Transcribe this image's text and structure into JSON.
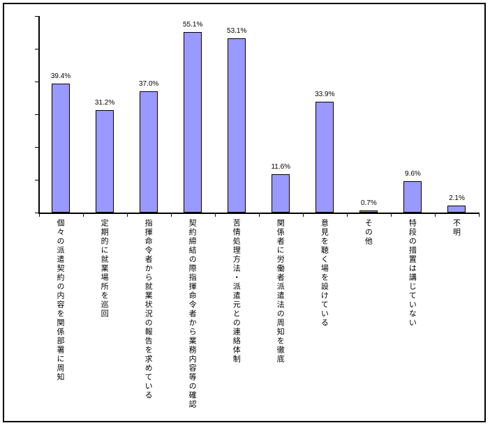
{
  "chart_data": {
    "type": "bar",
    "title": "",
    "xlabel": "",
    "ylabel": "",
    "categories": [
      "個々の派遣契約の内容を関係部署に周知",
      "定期的に就業場所を巡回",
      "指揮命令者から就業状況の報告を求めている",
      "契約締結の際指揮命令者から業務内容等の確認",
      "苦情処理方法・派遣元との連絡体制",
      "関係者に労働者派遣法の周知を徹底",
      "意見を聴く場を設けている",
      "その他",
      "特段の措置は講じていない",
      "不明"
    ],
    "values": [
      39.4,
      31.2,
      37.0,
      55.1,
      53.1,
      11.6,
      33.9,
      0.7,
      9.6,
      2.1
    ],
    "value_labels": [
      "39.4%",
      "31.2%",
      "37.0%",
      "55.1%",
      "53.1%",
      "11.6%",
      "33.9%",
      "0.7%",
      "9.6%",
      "2.1%"
    ],
    "ylim": [
      0,
      60
    ],
    "y_tick_interval": 10,
    "y_tick_labels_shown": false,
    "grid": false,
    "legend": "none",
    "colors": {
      "bar_fill": "#9999FF",
      "bar_border": "#000000",
      "axis": "#000000",
      "background": "#FFFFFF",
      "text": "#000000"
    }
  }
}
